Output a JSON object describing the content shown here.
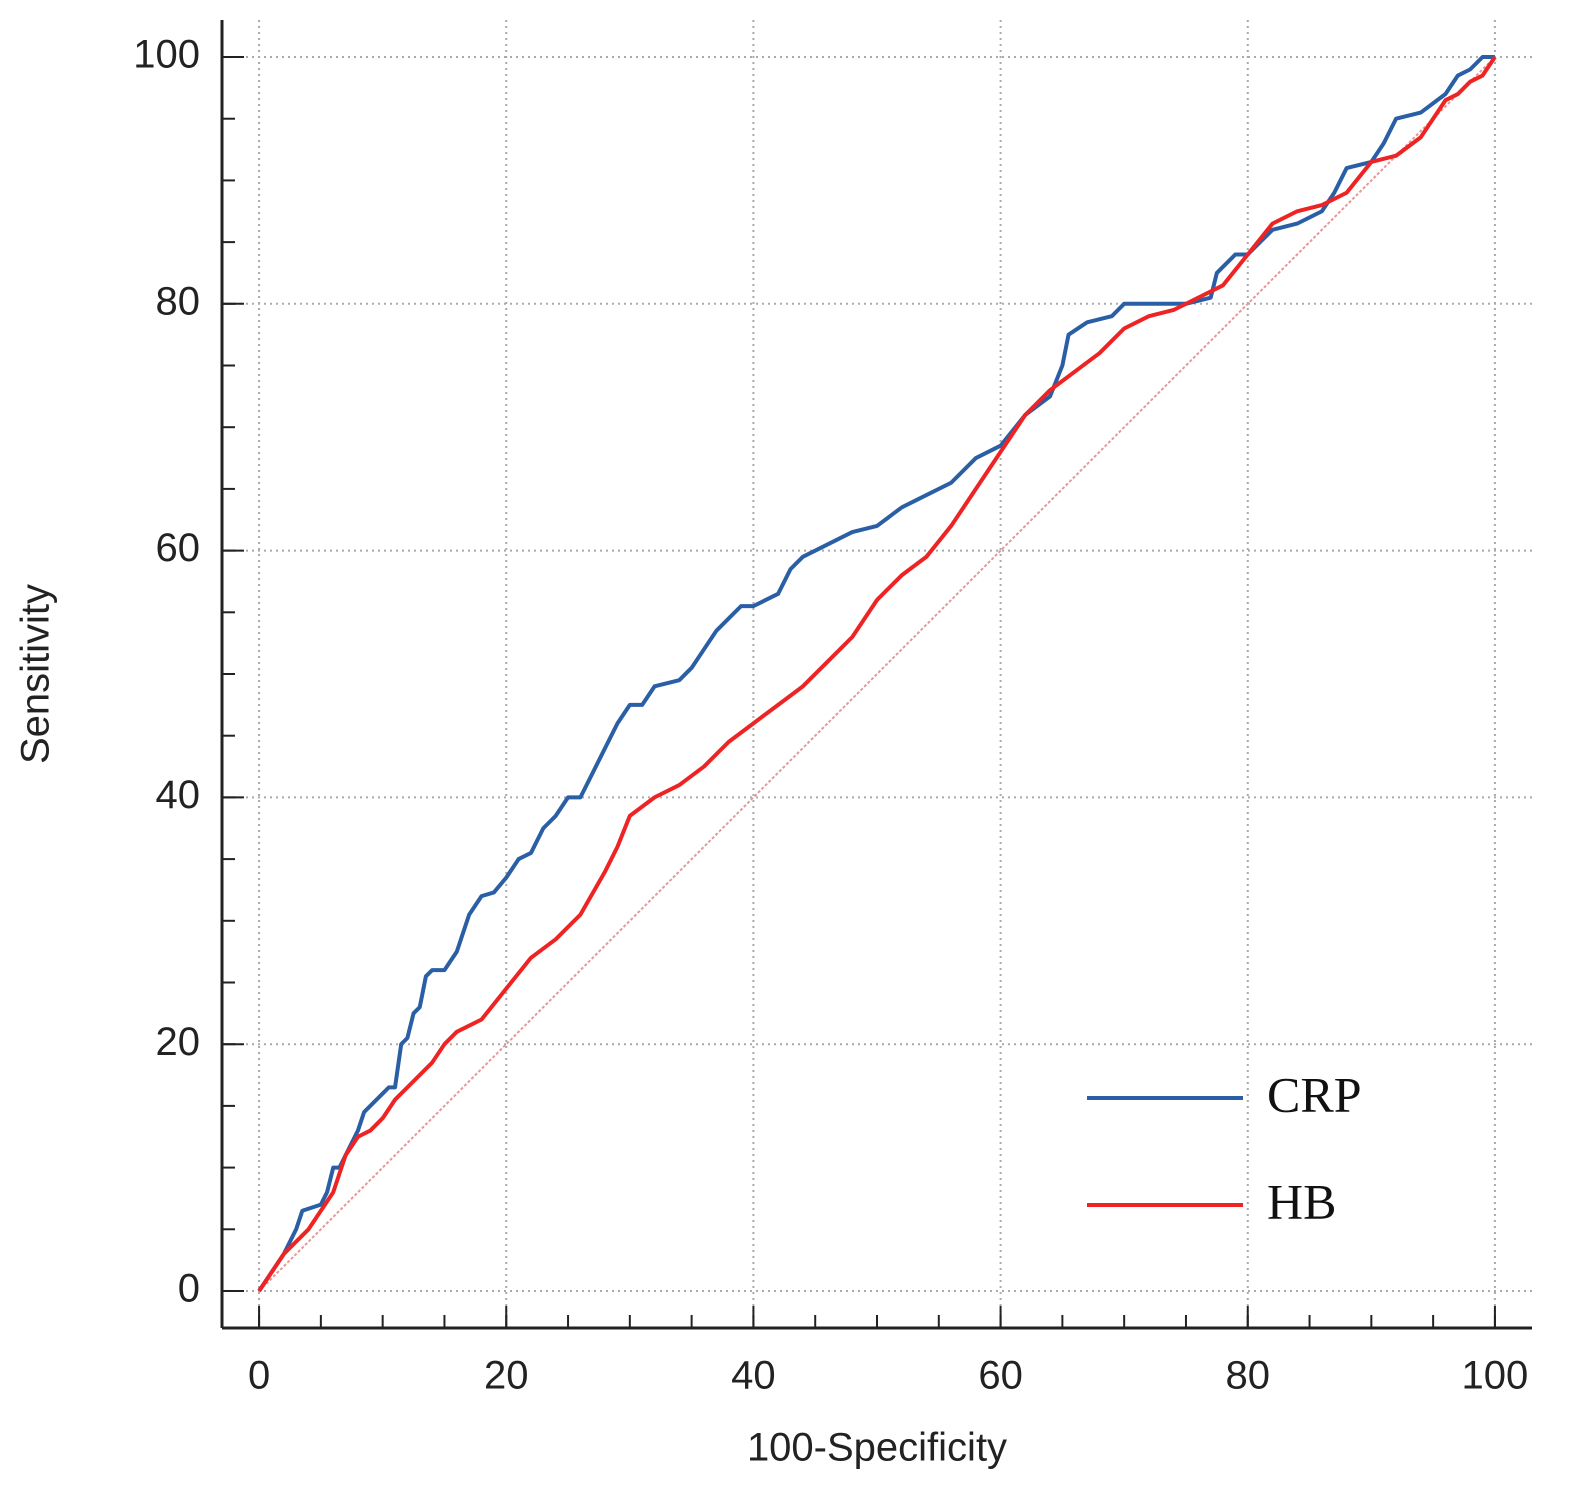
{
  "chart_data": {
    "type": "line",
    "x_label": "100-Specificity",
    "y_label": "Sensitivity",
    "xlim": [
      -3,
      103
    ],
    "ylim": [
      -3,
      103
    ],
    "xticks": [
      0,
      20,
      40,
      60,
      80,
      100
    ],
    "yticks": [
      0,
      20,
      40,
      60,
      80,
      100
    ],
    "xminorticks": [
      0,
      5,
      10,
      15,
      20,
      25,
      30,
      35,
      40,
      45,
      50,
      55,
      60,
      65,
      70,
      75,
      80,
      85,
      90,
      95,
      100
    ],
    "yminorticks": [
      0,
      5,
      10,
      15,
      20,
      25,
      30,
      35,
      40,
      45,
      50,
      55,
      60,
      65,
      70,
      75,
      80,
      85,
      90,
      95,
      100
    ],
    "grid": true,
    "legend_position": "lower right",
    "reference_line": {
      "x": [
        0,
        100
      ],
      "y": [
        0,
        100
      ],
      "color": "#e39a9a"
    },
    "series": [
      {
        "name": "CRP",
        "color": "#2a5fa5",
        "x": [
          0,
          2,
          3,
          3.5,
          5,
          5.5,
          6,
          6.5,
          7,
          8,
          8.5,
          10,
          10.5,
          11,
          11.5,
          12,
          12.5,
          13,
          13.5,
          14,
          15,
          16,
          17,
          18,
          19,
          20,
          21,
          22,
          23,
          24,
          25,
          26,
          27,
          28,
          29,
          30,
          31,
          32,
          34,
          35,
          36,
          37,
          38,
          39,
          40,
          41,
          42,
          43,
          44,
          46,
          48,
          50,
          52,
          54,
          56,
          58,
          60,
          62,
          64,
          65,
          65.5,
          67,
          69,
          70,
          73,
          75,
          77,
          77.5,
          79,
          80,
          81,
          82,
          84,
          86,
          87,
          88,
          90,
          91,
          92,
          94,
          96,
          97,
          98,
          99,
          100
        ],
        "values": [
          0,
          3,
          5,
          6.5,
          7,
          8,
          10,
          10,
          11,
          13,
          14.5,
          16,
          16.5,
          16.5,
          20,
          20.5,
          22.5,
          23,
          25.5,
          26,
          26,
          27.5,
          30.5,
          32,
          32.3,
          33.5,
          35,
          35.5,
          37.5,
          38.5,
          40,
          40,
          42,
          44,
          46,
          47.5,
          47.5,
          49,
          49.5,
          50.5,
          52,
          53.5,
          54.5,
          55.5,
          55.5,
          56,
          56.5,
          58.5,
          59.5,
          60.5,
          61.5,
          62,
          63.5,
          64.5,
          65.5,
          67.5,
          68.5,
          71,
          72.5,
          75,
          77.5,
          78.5,
          79,
          80,
          80,
          80,
          80.5,
          82.5,
          84,
          84,
          85,
          86,
          86.5,
          87.5,
          89,
          91,
          91.5,
          93,
          95,
          95.5,
          97,
          98.5,
          99,
          100,
          100
        ]
      },
      {
        "name": "HB",
        "color": "#ee2424",
        "x": [
          0,
          2,
          4,
          5,
          6,
          7,
          8,
          9,
          10,
          11,
          12,
          14,
          15,
          16,
          18,
          20,
          22,
          24,
          26,
          28,
          29,
          30,
          32,
          34,
          36,
          38,
          40,
          42,
          44,
          46,
          48,
          50,
          52,
          54,
          56,
          58,
          60,
          62,
          64,
          66,
          68,
          70,
          72,
          74,
          76,
          78,
          80,
          82,
          84,
          86,
          88,
          90,
          92,
          94,
          95,
          96,
          97,
          98,
          99,
          100
        ],
        "values": [
          0,
          3,
          5,
          6.5,
          8,
          11,
          12.5,
          13,
          14,
          15.5,
          16.5,
          18.5,
          20,
          21,
          22,
          24.5,
          27,
          28.5,
          30.5,
          34,
          36,
          38.5,
          40,
          41,
          42.5,
          44.5,
          46,
          47.5,
          49,
          51,
          53,
          56,
          58,
          59.5,
          62,
          65,
          68,
          71,
          73,
          74.5,
          76,
          78,
          79,
          79.5,
          80.5,
          81.5,
          84,
          86.5,
          87.5,
          88,
          89,
          91.5,
          92,
          93.5,
          95,
          96.5,
          97,
          98,
          98.5,
          100
        ]
      }
    ]
  }
}
